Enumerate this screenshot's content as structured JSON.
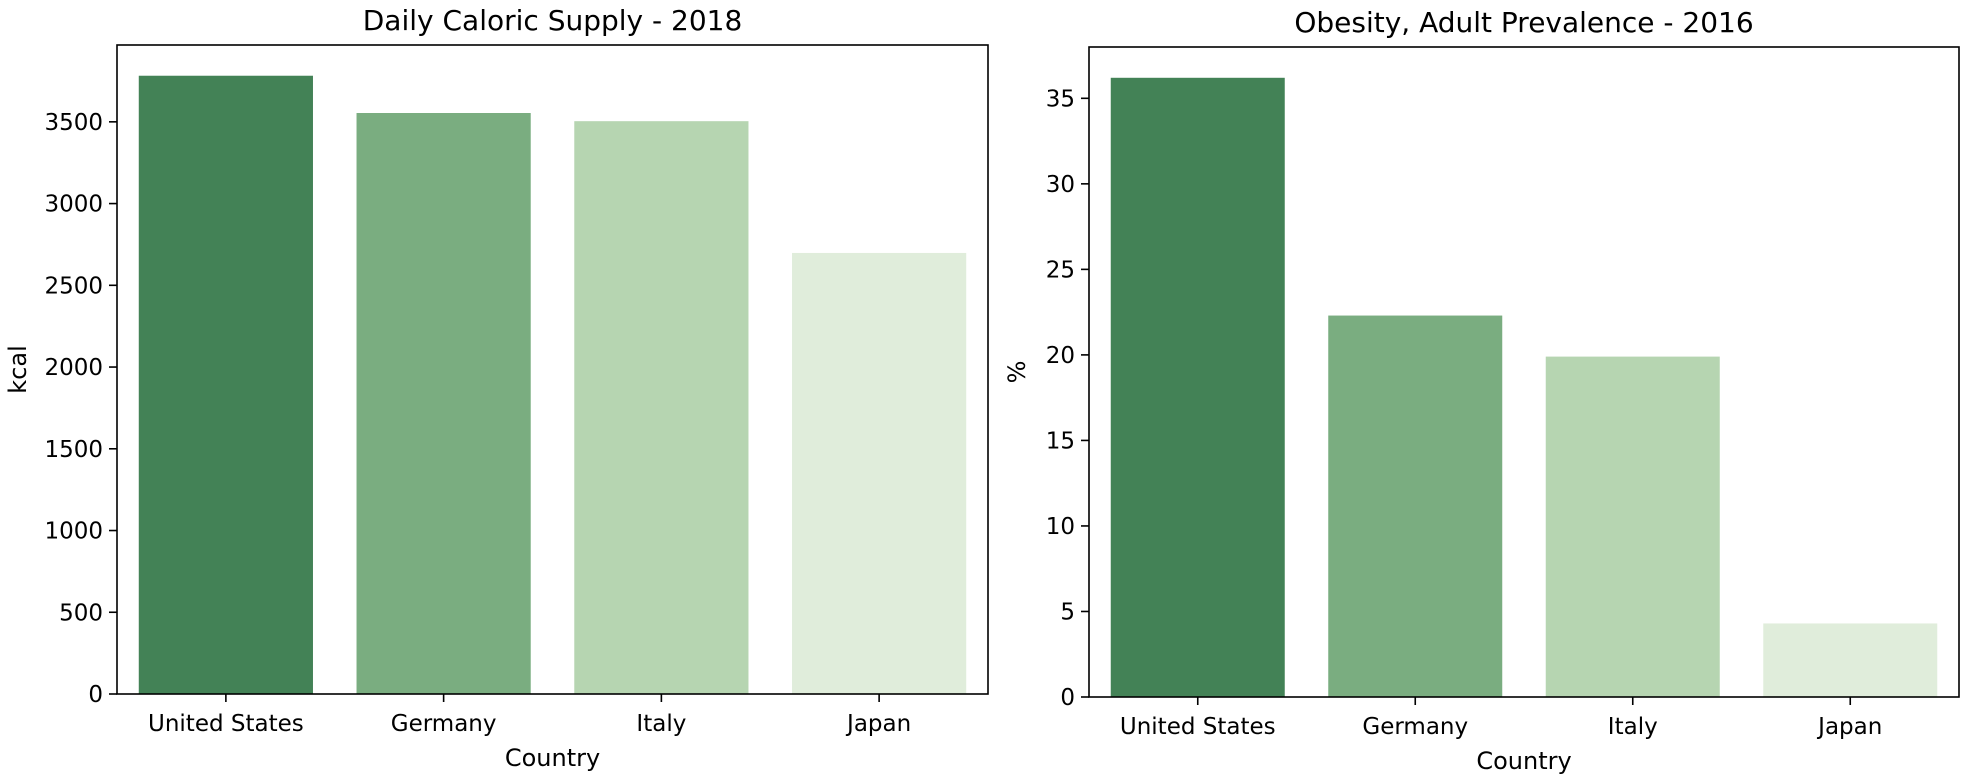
{
  "chart_data": [
    {
      "type": "bar",
      "title": "Daily Caloric Supply - 2018",
      "xlabel": "Country",
      "ylabel": "kcal",
      "categories": [
        "United States",
        "Germany",
        "Italy",
        "Japan"
      ],
      "values": [
        3782,
        3554,
        3504,
        2698
      ],
      "ylim": [
        0,
        3970
      ],
      "yticks": [
        0,
        500,
        1000,
        1500,
        2000,
        2500,
        3000,
        3500
      ],
      "colors": [
        "#438256",
        "#7aad80",
        "#b6d5b1",
        "#e0eddb"
      ],
      "grid": false
    },
    {
      "type": "bar",
      "title": "Obesity, Adult Prevalence - 2016",
      "xlabel": "Country",
      "ylabel": "%",
      "categories": [
        "United States",
        "Germany",
        "Italy",
        "Japan"
      ],
      "values": [
        36.2,
        22.3,
        19.9,
        4.3
      ],
      "ylim": [
        0,
        38.0
      ],
      "yticks": [
        0,
        5,
        10,
        15,
        20,
        25,
        30,
        35
      ],
      "colors": [
        "#438256",
        "#7aad80",
        "#b6d5b1",
        "#e0eddb"
      ],
      "grid": false
    }
  ]
}
